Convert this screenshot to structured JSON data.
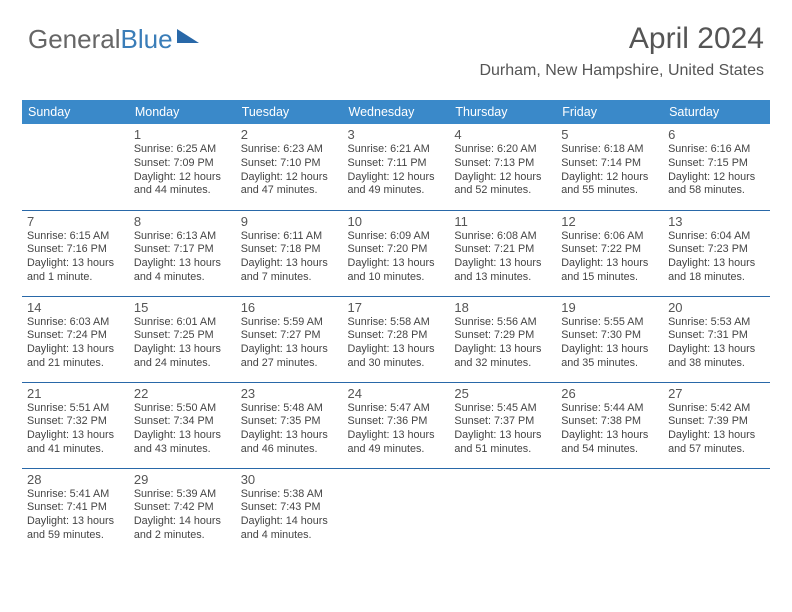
{
  "logo": {
    "text1": "General",
    "text2": "Blue"
  },
  "title": "April 2024",
  "subtitle": "Durham, New Hampshire, United States",
  "colors": {
    "header_bg": "#3a89c9",
    "header_text": "#ffffff",
    "row_border": "#2968a8",
    "text": "#444444",
    "title_text": "#555555",
    "logo_gray": "#666666",
    "logo_blue": "#3a7db8",
    "background": "#ffffff"
  },
  "headers": [
    "Sunday",
    "Monday",
    "Tuesday",
    "Wednesday",
    "Thursday",
    "Friday",
    "Saturday"
  ],
  "weeks": [
    [
      null,
      {
        "n": "1",
        "sr": "6:25 AM",
        "ss": "7:09 PM",
        "dl": "12 hours and 44 minutes."
      },
      {
        "n": "2",
        "sr": "6:23 AM",
        "ss": "7:10 PM",
        "dl": "12 hours and 47 minutes."
      },
      {
        "n": "3",
        "sr": "6:21 AM",
        "ss": "7:11 PM",
        "dl": "12 hours and 49 minutes."
      },
      {
        "n": "4",
        "sr": "6:20 AM",
        "ss": "7:13 PM",
        "dl": "12 hours and 52 minutes."
      },
      {
        "n": "5",
        "sr": "6:18 AM",
        "ss": "7:14 PM",
        "dl": "12 hours and 55 minutes."
      },
      {
        "n": "6",
        "sr": "6:16 AM",
        "ss": "7:15 PM",
        "dl": "12 hours and 58 minutes."
      }
    ],
    [
      {
        "n": "7",
        "sr": "6:15 AM",
        "ss": "7:16 PM",
        "dl": "13 hours and 1 minute."
      },
      {
        "n": "8",
        "sr": "6:13 AM",
        "ss": "7:17 PM",
        "dl": "13 hours and 4 minutes."
      },
      {
        "n": "9",
        "sr": "6:11 AM",
        "ss": "7:18 PM",
        "dl": "13 hours and 7 minutes."
      },
      {
        "n": "10",
        "sr": "6:09 AM",
        "ss": "7:20 PM",
        "dl": "13 hours and 10 minutes."
      },
      {
        "n": "11",
        "sr": "6:08 AM",
        "ss": "7:21 PM",
        "dl": "13 hours and 13 minutes."
      },
      {
        "n": "12",
        "sr": "6:06 AM",
        "ss": "7:22 PM",
        "dl": "13 hours and 15 minutes."
      },
      {
        "n": "13",
        "sr": "6:04 AM",
        "ss": "7:23 PM",
        "dl": "13 hours and 18 minutes."
      }
    ],
    [
      {
        "n": "14",
        "sr": "6:03 AM",
        "ss": "7:24 PM",
        "dl": "13 hours and 21 minutes."
      },
      {
        "n": "15",
        "sr": "6:01 AM",
        "ss": "7:25 PM",
        "dl": "13 hours and 24 minutes."
      },
      {
        "n": "16",
        "sr": "5:59 AM",
        "ss": "7:27 PM",
        "dl": "13 hours and 27 minutes."
      },
      {
        "n": "17",
        "sr": "5:58 AM",
        "ss": "7:28 PM",
        "dl": "13 hours and 30 minutes."
      },
      {
        "n": "18",
        "sr": "5:56 AM",
        "ss": "7:29 PM",
        "dl": "13 hours and 32 minutes."
      },
      {
        "n": "19",
        "sr": "5:55 AM",
        "ss": "7:30 PM",
        "dl": "13 hours and 35 minutes."
      },
      {
        "n": "20",
        "sr": "5:53 AM",
        "ss": "7:31 PM",
        "dl": "13 hours and 38 minutes."
      }
    ],
    [
      {
        "n": "21",
        "sr": "5:51 AM",
        "ss": "7:32 PM",
        "dl": "13 hours and 41 minutes."
      },
      {
        "n": "22",
        "sr": "5:50 AM",
        "ss": "7:34 PM",
        "dl": "13 hours and 43 minutes."
      },
      {
        "n": "23",
        "sr": "5:48 AM",
        "ss": "7:35 PM",
        "dl": "13 hours and 46 minutes."
      },
      {
        "n": "24",
        "sr": "5:47 AM",
        "ss": "7:36 PM",
        "dl": "13 hours and 49 minutes."
      },
      {
        "n": "25",
        "sr": "5:45 AM",
        "ss": "7:37 PM",
        "dl": "13 hours and 51 minutes."
      },
      {
        "n": "26",
        "sr": "5:44 AM",
        "ss": "7:38 PM",
        "dl": "13 hours and 54 minutes."
      },
      {
        "n": "27",
        "sr": "5:42 AM",
        "ss": "7:39 PM",
        "dl": "13 hours and 57 minutes."
      }
    ],
    [
      {
        "n": "28",
        "sr": "5:41 AM",
        "ss": "7:41 PM",
        "dl": "13 hours and 59 minutes."
      },
      {
        "n": "29",
        "sr": "5:39 AM",
        "ss": "7:42 PM",
        "dl": "14 hours and 2 minutes."
      },
      {
        "n": "30",
        "sr": "5:38 AM",
        "ss": "7:43 PM",
        "dl": "14 hours and 4 minutes."
      },
      null,
      null,
      null,
      null
    ]
  ],
  "labels": {
    "sunrise": "Sunrise: ",
    "sunset": "Sunset: ",
    "daylight": "Daylight: "
  }
}
